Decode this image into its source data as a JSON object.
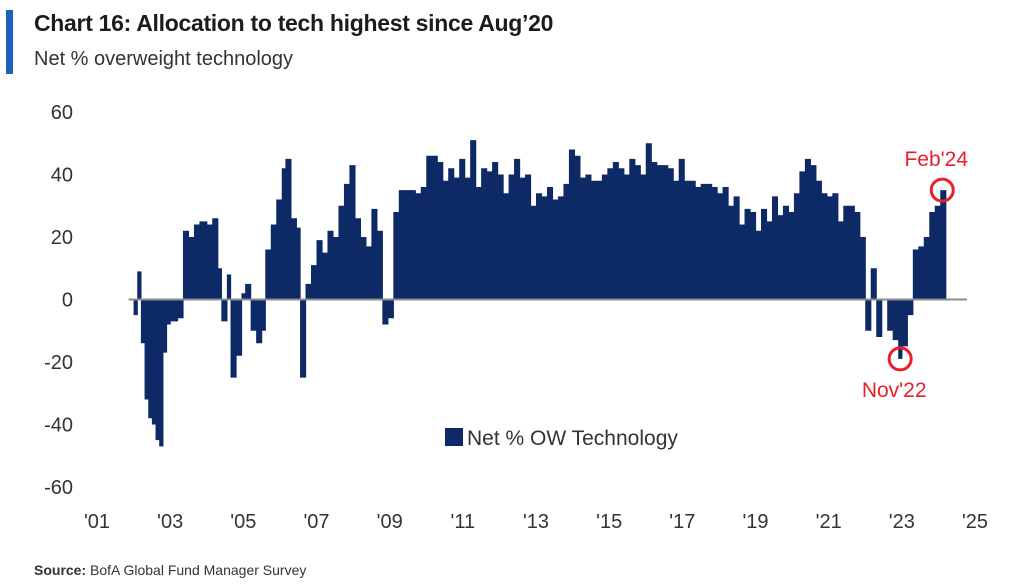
{
  "header": {
    "title": "Chart 16: Allocation to tech highest since Aug’20",
    "subtitle": "Net % overweight technology"
  },
  "footer": {
    "source_label": "Source:",
    "source_text": "BofA Global Fund Manager Survey"
  },
  "colors": {
    "bar": "#0d2a66",
    "zero_line": "#8c8c8c",
    "annotation": "#e8202a",
    "accent": "#1f5fbf"
  },
  "chart_data": {
    "type": "bar",
    "title": "Chart 16: Allocation to tech highest since Aug’20",
    "subtitle": "Net % overweight technology",
    "ylim": [
      -60,
      60
    ],
    "yticks": [
      60,
      40,
      20,
      0,
      -20,
      -40,
      -60
    ],
    "xlim": [
      2001.0,
      2025.0
    ],
    "xticks": [
      {
        "value": 2001,
        "label": "'01"
      },
      {
        "value": 2003,
        "label": "'03"
      },
      {
        "value": 2005,
        "label": "'05"
      },
      {
        "value": 2007,
        "label": "'07"
      },
      {
        "value": 2009,
        "label": "'09"
      },
      {
        "value": 2011,
        "label": "'11"
      },
      {
        "value": 2013,
        "label": "'13"
      },
      {
        "value": 2015,
        "label": "'15"
      },
      {
        "value": 2017,
        "label": "'17"
      },
      {
        "value": 2019,
        "label": "'19"
      },
      {
        "value": 2021,
        "label": "'21"
      },
      {
        "value": 2023,
        "label": "'23"
      },
      {
        "value": 2025,
        "label": "'25"
      }
    ],
    "grid": false,
    "legend": {
      "position": "bottom-center",
      "entries": [
        "Net % OW Technology"
      ]
    },
    "series": [
      {
        "name": "Net % OW Technology",
        "points": [
          [
            2002.0,
            -5
          ],
          [
            2002.1,
            9
          ],
          [
            2002.2,
            -14
          ],
          [
            2002.3,
            -32
          ],
          [
            2002.4,
            -38
          ],
          [
            2002.5,
            -40
          ],
          [
            2002.6,
            -45
          ],
          [
            2002.7,
            -47
          ],
          [
            2002.8,
            -17
          ],
          [
            2002.9,
            -8
          ],
          [
            2003.0,
            -7
          ],
          [
            2003.2,
            -6
          ],
          [
            2003.35,
            22
          ],
          [
            2003.5,
            20
          ],
          [
            2003.65,
            24
          ],
          [
            2003.8,
            25
          ],
          [
            2004.0,
            24
          ],
          [
            2004.15,
            26
          ],
          [
            2004.3,
            10
          ],
          [
            2004.4,
            -7
          ],
          [
            2004.55,
            8
          ],
          [
            2004.65,
            -25
          ],
          [
            2004.8,
            -18
          ],
          [
            2004.95,
            2
          ],
          [
            2005.05,
            5
          ],
          [
            2005.2,
            -10
          ],
          [
            2005.35,
            -14
          ],
          [
            2005.5,
            -10
          ],
          [
            2005.6,
            16
          ],
          [
            2005.75,
            24
          ],
          [
            2005.9,
            32
          ],
          [
            2006.05,
            42
          ],
          [
            2006.15,
            45
          ],
          [
            2006.3,
            26
          ],
          [
            2006.45,
            23
          ],
          [
            2006.55,
            -25
          ],
          [
            2006.7,
            5
          ],
          [
            2006.85,
            11
          ],
          [
            2007.0,
            19
          ],
          [
            2007.15,
            15
          ],
          [
            2007.3,
            22
          ],
          [
            2007.45,
            20
          ],
          [
            2007.6,
            30
          ],
          [
            2007.75,
            37
          ],
          [
            2007.9,
            43
          ],
          [
            2008.05,
            26
          ],
          [
            2008.2,
            20
          ],
          [
            2008.35,
            17
          ],
          [
            2008.5,
            29
          ],
          [
            2008.65,
            22
          ],
          [
            2008.8,
            -8
          ],
          [
            2008.95,
            -6
          ],
          [
            2009.1,
            28
          ],
          [
            2009.25,
            35
          ],
          [
            2009.4,
            35
          ],
          [
            2009.55,
            35
          ],
          [
            2009.7,
            34
          ],
          [
            2009.85,
            36
          ],
          [
            2010.0,
            46
          ],
          [
            2010.15,
            46
          ],
          [
            2010.3,
            44
          ],
          [
            2010.45,
            38
          ],
          [
            2010.6,
            42
          ],
          [
            2010.75,
            39
          ],
          [
            2010.9,
            45
          ],
          [
            2011.05,
            39
          ],
          [
            2011.2,
            51
          ],
          [
            2011.35,
            36
          ],
          [
            2011.5,
            42
          ],
          [
            2011.65,
            41
          ],
          [
            2011.8,
            44
          ],
          [
            2011.95,
            40
          ],
          [
            2012.1,
            34
          ],
          [
            2012.25,
            40
          ],
          [
            2012.4,
            45
          ],
          [
            2012.55,
            39
          ],
          [
            2012.7,
            40
          ],
          [
            2012.85,
            30
          ],
          [
            2013.0,
            34
          ],
          [
            2013.15,
            33
          ],
          [
            2013.3,
            36
          ],
          [
            2013.45,
            32
          ],
          [
            2013.6,
            33
          ],
          [
            2013.75,
            37
          ],
          [
            2013.9,
            48
          ],
          [
            2014.05,
            46
          ],
          [
            2014.2,
            39
          ],
          [
            2014.35,
            40
          ],
          [
            2014.5,
            38
          ],
          [
            2014.65,
            38
          ],
          [
            2014.8,
            40
          ],
          [
            2014.95,
            42
          ],
          [
            2015.1,
            44
          ],
          [
            2015.25,
            42
          ],
          [
            2015.4,
            40
          ],
          [
            2015.55,
            45
          ],
          [
            2015.7,
            43
          ],
          [
            2015.85,
            40
          ],
          [
            2016.0,
            50
          ],
          [
            2016.15,
            44
          ],
          [
            2016.3,
            43
          ],
          [
            2016.45,
            43
          ],
          [
            2016.6,
            42
          ],
          [
            2016.75,
            38
          ],
          [
            2016.9,
            45
          ],
          [
            2017.05,
            38
          ],
          [
            2017.2,
            38
          ],
          [
            2017.35,
            36
          ],
          [
            2017.5,
            37
          ],
          [
            2017.65,
            37
          ],
          [
            2017.8,
            36
          ],
          [
            2017.95,
            34
          ],
          [
            2018.1,
            36
          ],
          [
            2018.25,
            30
          ],
          [
            2018.4,
            33
          ],
          [
            2018.55,
            24
          ],
          [
            2018.7,
            29
          ],
          [
            2018.85,
            28
          ],
          [
            2019.0,
            22
          ],
          [
            2019.15,
            29
          ],
          [
            2019.3,
            25
          ],
          [
            2019.45,
            33
          ],
          [
            2019.6,
            27
          ],
          [
            2019.75,
            30
          ],
          [
            2019.9,
            28
          ],
          [
            2020.05,
            34
          ],
          [
            2020.2,
            41
          ],
          [
            2020.35,
            45
          ],
          [
            2020.5,
            43
          ],
          [
            2020.65,
            38
          ],
          [
            2020.8,
            34
          ],
          [
            2020.95,
            33
          ],
          [
            2021.1,
            34
          ],
          [
            2021.25,
            25
          ],
          [
            2021.4,
            30
          ],
          [
            2021.55,
            30
          ],
          [
            2021.7,
            28
          ],
          [
            2021.85,
            20
          ],
          [
            2022.0,
            -10
          ],
          [
            2022.15,
            10
          ],
          [
            2022.3,
            -12
          ],
          [
            2022.45,
            0
          ],
          [
            2022.6,
            -10
          ],
          [
            2022.75,
            -13
          ],
          [
            2022.9,
            -19
          ],
          [
            2023.0,
            -15
          ],
          [
            2023.15,
            -5
          ],
          [
            2023.3,
            16
          ],
          [
            2023.45,
            17
          ],
          [
            2023.6,
            20
          ],
          [
            2023.75,
            28
          ],
          [
            2023.9,
            30
          ],
          [
            2024.05,
            35
          ]
        ]
      }
    ],
    "annotations": [
      {
        "label": "Feb'24",
        "x": 2024.05,
        "y": 35
      },
      {
        "label": "Nov'22",
        "x": 2022.9,
        "y": -19
      }
    ]
  }
}
